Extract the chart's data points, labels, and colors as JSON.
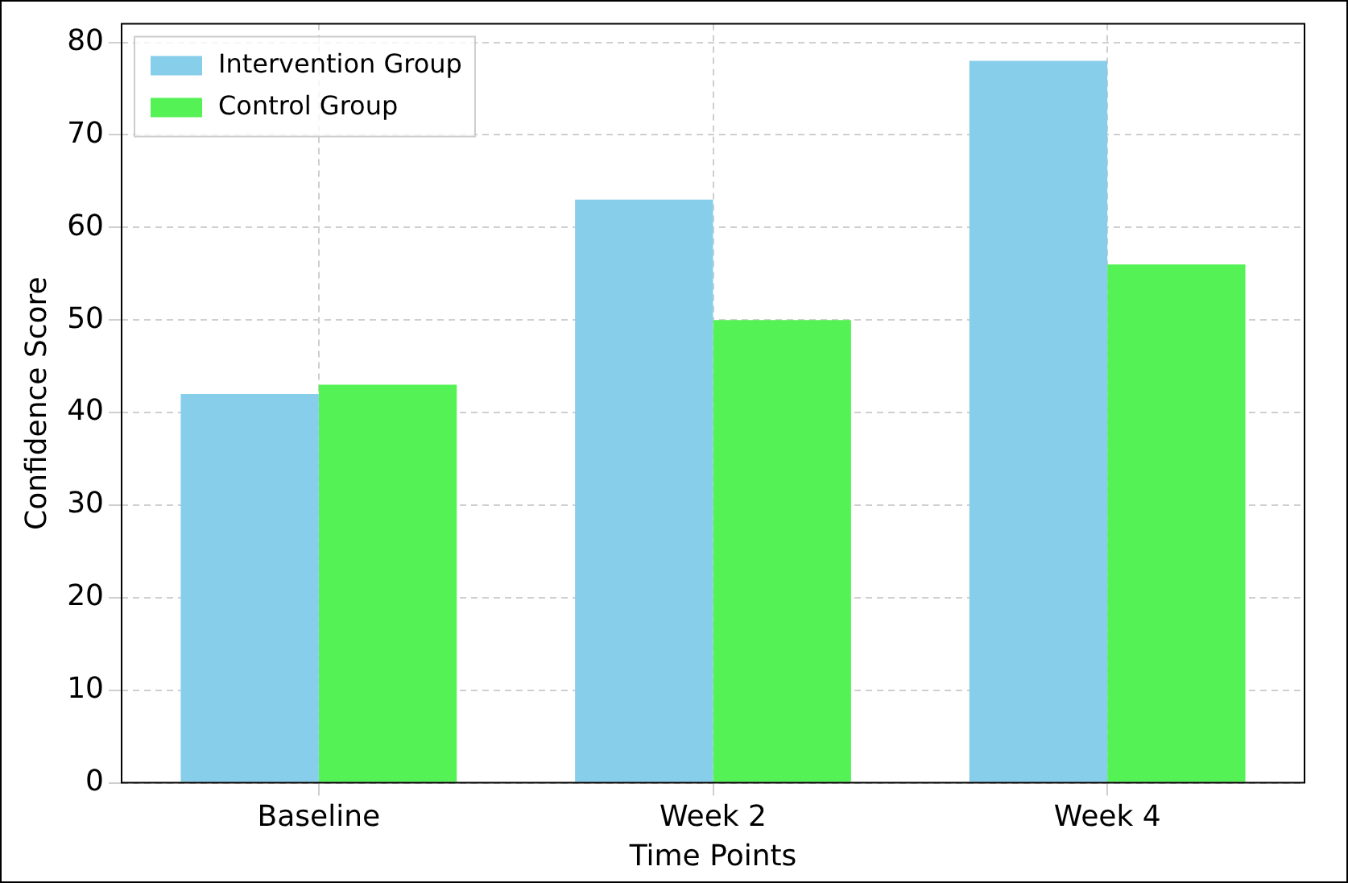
{
  "chart_data": {
    "type": "bar",
    "xlabel": "Time Points",
    "ylabel": "Confidence Score",
    "categories": [
      "Baseline",
      "Week 2",
      "Week 4"
    ],
    "series": [
      {
        "name": "Intervention Group",
        "color": "#87ceeb",
        "values": [
          42,
          63,
          78
        ]
      },
      {
        "name": "Control Group",
        "color": "#55f255",
        "values": [
          43,
          50,
          56
        ]
      }
    ],
    "ylim": [
      0,
      82
    ],
    "yticks": [
      0,
      10,
      20,
      30,
      40,
      50,
      60,
      70,
      80
    ],
    "grid": true,
    "legend": "top left"
  }
}
